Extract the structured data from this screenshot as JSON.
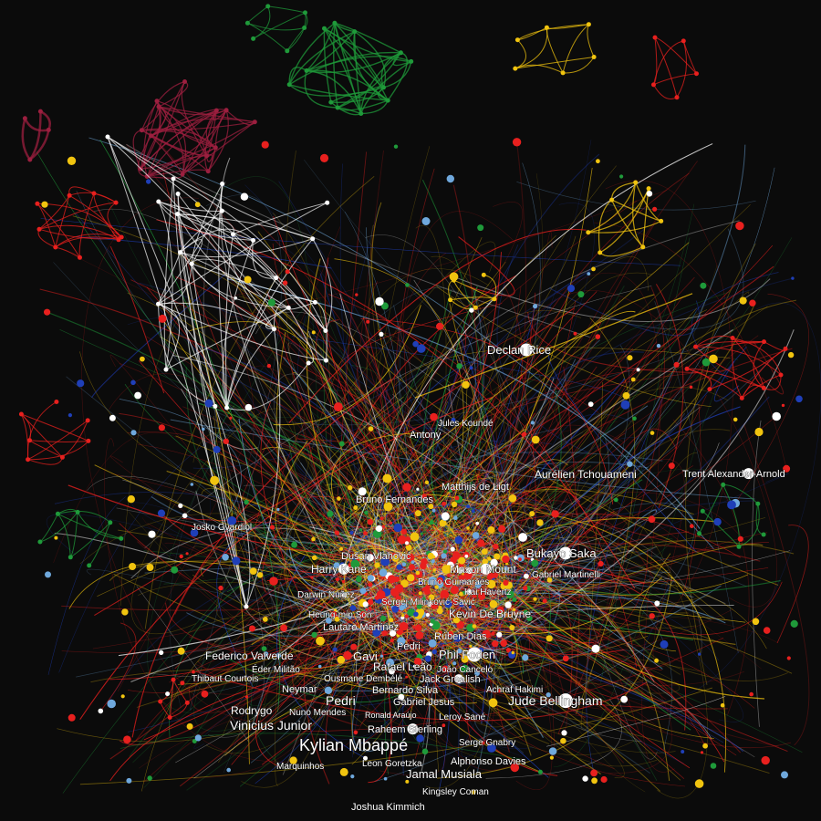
{
  "colors": {
    "background": "#0b0b0b",
    "red": "#e8201e",
    "yellow": "#f1c40f",
    "green": "#1f9a3a",
    "blue": "#1f3fb8",
    "lightblue": "#6fa8dc",
    "white": "#ffffff",
    "maroon": "#9c1f3f"
  },
  "labels": [
    {
      "id": "declan-rice",
      "text": "Declan Rice"
    },
    {
      "id": "jules-kounde",
      "text": "Jules Koundé"
    },
    {
      "id": "antony",
      "text": "Antony"
    },
    {
      "id": "aurelien-tchouameni",
      "text": "Aurélien Tchouameni"
    },
    {
      "id": "trent-alexander-arnold",
      "text": "Trent Alexander-Arnold"
    },
    {
      "id": "matthijs-de-ligt",
      "text": "Matthijs de Ligt"
    },
    {
      "id": "bruno-fernandes",
      "text": "Bruno Fernandes"
    },
    {
      "id": "josko-gvardiol",
      "text": "Josko Gvardiol"
    },
    {
      "id": "bukayo-saka",
      "text": "Bukayo Saka"
    },
    {
      "id": "dusan-vlahovic",
      "text": "Dušan Vlahović"
    },
    {
      "id": "harry-kane",
      "text": "Harry Kane"
    },
    {
      "id": "mason-mount",
      "text": "Mason Mount"
    },
    {
      "id": "gabriel-martinelli",
      "text": "Gabriel Martinelli"
    },
    {
      "id": "bruno-guimaraes",
      "text": "Bruno Guimarães"
    },
    {
      "id": "kai-havertz",
      "text": "Kai Havertz"
    },
    {
      "id": "darwin-nunez",
      "text": "Darwin Núñez"
    },
    {
      "id": "sergej-milinkovic-savic",
      "text": "Sergej Milinković-Savić"
    },
    {
      "id": "heung-min-son",
      "text": "Heung-min Son"
    },
    {
      "id": "kevin-de-bruyne",
      "text": "Kevin De Bruyne"
    },
    {
      "id": "lautaro-martinez",
      "text": "Lautaro Martínez"
    },
    {
      "id": "ruben-dias",
      "text": "Rúben Dias"
    },
    {
      "id": "federico-valverde",
      "text": "Federico Valverde"
    },
    {
      "id": "pedri",
      "text": "Pedri"
    },
    {
      "id": "phil-foden",
      "text": "Phil Foden"
    },
    {
      "id": "gavi",
      "text": "Gavi"
    },
    {
      "id": "eder-militao",
      "text": "Éder Militão"
    },
    {
      "id": "rafael-leao",
      "text": "Rafael Leão"
    },
    {
      "id": "joao-cancelo",
      "text": "João Cancelo"
    },
    {
      "id": "thibaut-courtois",
      "text": "Thibaut Courtois"
    },
    {
      "id": "ousmane-dembele",
      "text": "Ousmane Dembélé"
    },
    {
      "id": "jack-grealish",
      "text": "Jack Grealish"
    },
    {
      "id": "neymar",
      "text": "Neymar"
    },
    {
      "id": "bernardo-silva",
      "text": "Bernardo Silva"
    },
    {
      "id": "achraf-hakimi",
      "text": "Achraf Hakimi"
    },
    {
      "id": "pedri-2",
      "text": "Pedri"
    },
    {
      "id": "jude-bellingham",
      "text": "Jude Bellingham"
    },
    {
      "id": "nuno-mendes",
      "text": "Nuno Mendes"
    },
    {
      "id": "gabriel-jesus",
      "text": "Gabriel Jesus"
    },
    {
      "id": "rodrygo",
      "text": "Rodrygo"
    },
    {
      "id": "ronald-araujo",
      "text": "Ronald Araújo"
    },
    {
      "id": "leroy-sane",
      "text": "Leroy Sané"
    },
    {
      "id": "vinicius-junior",
      "text": "Vinicius Junior"
    },
    {
      "id": "raheem-sterling",
      "text": "Raheem Sterling"
    },
    {
      "id": "serge-gnabry",
      "text": "Serge Gnabry"
    },
    {
      "id": "kylian-mbappe",
      "text": "Kylian Mbappé"
    },
    {
      "id": "alphonso-davies",
      "text": "Alphonso Davies"
    },
    {
      "id": "marquinhos",
      "text": "Marquinhos"
    },
    {
      "id": "leon-goretzka",
      "text": "Leon Goretzka"
    },
    {
      "id": "jamal-musiala",
      "text": "Jamal Musiala"
    },
    {
      "id": "kingsley-coman",
      "text": "Kingsley Coman"
    },
    {
      "id": "joshua-kimmich",
      "text": "Joshua Kimmich"
    }
  ]
}
